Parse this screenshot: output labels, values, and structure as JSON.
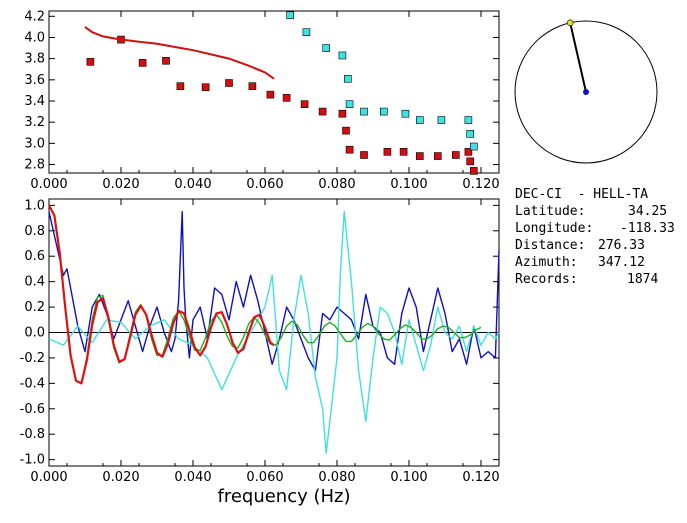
{
  "chart_data": [
    {
      "type": "scatter",
      "xlim": [
        0.0,
        0.125
      ],
      "ylim": [
        2.72,
        4.25
      ],
      "x_ticks": [
        "0.000",
        "0.020",
        "0.040",
        "0.060",
        "0.080",
        "0.100",
        "0.120"
      ],
      "x_tick_values": [
        0.0,
        0.02,
        0.04,
        0.06,
        0.08,
        0.1,
        0.12
      ],
      "y_ticks": [
        "2.8",
        "3.0",
        "3.2",
        "3.4",
        "3.6",
        "3.8",
        "4.0",
        "4.2"
      ],
      "y_tick_values": [
        2.8,
        3.0,
        3.2,
        3.4,
        3.6,
        3.8,
        4.0,
        4.2
      ],
      "series": [
        {
          "color": "#d01010",
          "marker": "square",
          "points": [
            [
              0.0115,
              3.77
            ],
            [
              0.02,
              3.98
            ],
            [
              0.026,
              3.76
            ],
            [
              0.0325,
              3.78
            ],
            [
              0.0365,
              3.54
            ],
            [
              0.0435,
              3.53
            ],
            [
              0.05,
              3.57
            ],
            [
              0.0565,
              3.54
            ],
            [
              0.0615,
              3.46
            ],
            [
              0.066,
              3.43
            ],
            [
              0.071,
              3.37
            ],
            [
              0.076,
              3.3
            ],
            [
              0.0815,
              3.28
            ],
            [
              0.0825,
              3.12
            ],
            [
              0.0835,
              2.94
            ],
            [
              0.0875,
              2.89
            ],
            [
              0.094,
              2.92
            ],
            [
              0.0985,
              2.92
            ],
            [
              0.103,
              2.88
            ],
            [
              0.108,
              2.88
            ],
            [
              0.113,
              2.89
            ],
            [
              0.1165,
              2.92
            ],
            [
              0.117,
              2.83
            ],
            [
              0.118,
              2.74
            ]
          ]
        },
        {
          "color": "#40e0e0",
          "marker": "square",
          "points": [
            [
              0.067,
              4.21
            ],
            [
              0.0715,
              4.05
            ],
            [
              0.077,
              3.9
            ],
            [
              0.0815,
              3.83
            ],
            [
              0.083,
              3.61
            ],
            [
              0.0835,
              3.37
            ],
            [
              0.0875,
              3.3
            ],
            [
              0.093,
              3.3
            ],
            [
              0.099,
              3.28
            ],
            [
              0.103,
              3.22
            ],
            [
              0.109,
              3.22
            ],
            [
              0.1165,
              3.22
            ],
            [
              0.117,
              3.09
            ],
            [
              0.118,
              2.97
            ]
          ]
        },
        {
          "color": "#d01010",
          "marker": "line",
          "points": [
            [
              0.01,
              4.1
            ],
            [
              0.012,
              4.05
            ],
            [
              0.015,
              4.01
            ],
            [
              0.02,
              3.98
            ],
            [
              0.025,
              3.96
            ],
            [
              0.03,
              3.94
            ],
            [
              0.035,
              3.91
            ],
            [
              0.04,
              3.88
            ],
            [
              0.045,
              3.84
            ],
            [
              0.05,
              3.8
            ],
            [
              0.055,
              3.74
            ],
            [
              0.06,
              3.67
            ],
            [
              0.0625,
              3.61
            ]
          ]
        }
      ]
    },
    {
      "type": "line",
      "xlabel": "frequency (Hz)",
      "xlim": [
        0.0,
        0.125
      ],
      "ylim": [
        -1.05,
        1.05
      ],
      "x_ticks": [
        "0.000",
        "0.020",
        "0.040",
        "0.060",
        "0.080",
        "0.100",
        "0.120"
      ],
      "x_tick_values": [
        0.0,
        0.02,
        0.04,
        0.06,
        0.08,
        0.1,
        0.12
      ],
      "y_ticks": [
        "1.0",
        "0.8",
        "0.6",
        "0.4",
        "0.2",
        "0.0",
        "-0.2",
        "-0.4",
        "-0.6",
        "-0.8",
        "-1.0"
      ],
      "y_tick_values": [
        1.0,
        0.8,
        0.6,
        0.4,
        0.2,
        0.0,
        -0.2,
        -0.4,
        -0.6,
        -0.8,
        -1.0
      ],
      "series": [
        {
          "color": "#1010c0",
          "width": 1.4,
          "x": [
            0.0,
            0.002,
            0.004,
            0.005,
            0.006,
            0.008,
            0.01,
            0.012,
            0.014,
            0.016,
            0.018,
            0.02,
            0.022,
            0.024,
            0.026,
            0.028,
            0.03,
            0.032,
            0.034,
            0.035,
            0.036,
            0.037,
            0.0375,
            0.038,
            0.039,
            0.04,
            0.042,
            0.044,
            0.046,
            0.048,
            0.05,
            0.052,
            0.054,
            0.056,
            0.058,
            0.06,
            0.062,
            0.064,
            0.066,
            0.068,
            0.07,
            0.072,
            0.074,
            0.076,
            0.078,
            0.08,
            0.082,
            0.084,
            0.086,
            0.088,
            0.09,
            0.092,
            0.094,
            0.096,
            0.098,
            0.1,
            0.102,
            0.104,
            0.106,
            0.108,
            0.11,
            0.112,
            0.114,
            0.116,
            0.118,
            0.12,
            0.122,
            0.124,
            0.125
          ],
          "y": [
            0.95,
            0.7,
            0.45,
            0.5,
            0.35,
            0.05,
            -0.15,
            0.2,
            0.3,
            0.15,
            -0.05,
            0.1,
            0.25,
            0.05,
            -0.15,
            0.05,
            0.2,
            0.0,
            -0.15,
            -0.05,
            0.25,
            0.95,
            0.35,
            0.1,
            -0.2,
            0.1,
            0.2,
            -0.05,
            0.35,
            0.3,
            0.1,
            0.4,
            0.2,
            0.45,
            0.25,
            0.0,
            -0.25,
            -0.05,
            0.2,
            0.1,
            -0.05,
            -0.2,
            -0.3,
            0.15,
            0.1,
            0.2,
            0.15,
            0.1,
            -0.05,
            0.3,
            0.05,
            0.0,
            -0.2,
            -0.25,
            0.15,
            0.35,
            0.2,
            -0.15,
            0.1,
            0.35,
            0.15,
            -0.15,
            -0.05,
            -0.25,
            0.05,
            -0.2,
            -0.15,
            -0.2,
            0.65
          ]
        },
        {
          "color": "#40e0e0",
          "width": 1.4,
          "x": [
            0.0,
            0.004,
            0.008,
            0.012,
            0.016,
            0.02,
            0.024,
            0.028,
            0.032,
            0.036,
            0.04,
            0.044,
            0.048,
            0.052,
            0.056,
            0.06,
            0.062,
            0.064,
            0.066,
            0.068,
            0.07,
            0.072,
            0.074,
            0.076,
            0.077,
            0.078,
            0.08,
            0.081,
            0.082,
            0.084,
            0.086,
            0.088,
            0.09,
            0.092,
            0.094,
            0.096,
            0.098,
            0.1,
            0.102,
            0.104,
            0.106,
            0.108,
            0.11,
            0.112,
            0.114,
            0.116,
            0.118,
            0.12,
            0.122,
            0.124,
            0.125
          ],
          "y": [
            -0.05,
            -0.1,
            0.05,
            -0.08,
            0.1,
            0.08,
            -0.05,
            0.05,
            0.1,
            -0.05,
            -0.1,
            -0.2,
            -0.45,
            -0.2,
            0.0,
            0.2,
            0.45,
            -0.3,
            -0.45,
            0.1,
            0.45,
            0.15,
            -0.35,
            -0.6,
            -0.95,
            -0.7,
            -0.2,
            0.5,
            0.95,
            0.4,
            -0.3,
            -0.7,
            -0.2,
            0.2,
            0.15,
            0.0,
            -0.25,
            0.1,
            -0.1,
            -0.3,
            -0.1,
            0.2,
            0.0,
            -0.05,
            0.05,
            -0.15,
            0.05,
            -0.1,
            0.0,
            -0.05,
            0.0
          ]
        },
        {
          "color": "#20b020",
          "width": 1.4,
          "x": [
            0.0,
            0.0015,
            0.003,
            0.0045,
            0.006,
            0.0075,
            0.009,
            0.0105,
            0.012,
            0.0135,
            0.015,
            0.0165,
            0.018,
            0.0195,
            0.021,
            0.0225,
            0.024,
            0.0255,
            0.027,
            0.0285,
            0.03,
            0.0315,
            0.033,
            0.0345,
            0.036,
            0.0375,
            0.039,
            0.0405,
            0.042,
            0.0435,
            0.045,
            0.0465,
            0.048,
            0.0495,
            0.051,
            0.0525,
            0.054,
            0.0555,
            0.057,
            0.0585,
            0.06,
            0.0615,
            0.063,
            0.0645,
            0.066,
            0.0675,
            0.069,
            0.0705,
            0.072,
            0.0735,
            0.075,
            0.0765,
            0.078,
            0.0795,
            0.081,
            0.0825,
            0.084,
            0.0855,
            0.087,
            0.0885,
            0.09,
            0.0915,
            0.093,
            0.0945,
            0.096,
            0.0975,
            0.099,
            0.1005,
            0.102,
            0.1035,
            0.105,
            0.1065,
            0.108,
            0.1095,
            0.111,
            0.1125,
            0.114,
            0.1155,
            0.117,
            0.1185,
            0.12
          ],
          "y": [
            1.0,
            0.92,
            0.62,
            0.2,
            -0.18,
            -0.38,
            -0.4,
            -0.2,
            0.1,
            0.28,
            0.29,
            0.1,
            -0.12,
            -0.24,
            -0.21,
            -0.02,
            0.16,
            0.22,
            0.13,
            -0.05,
            -0.18,
            -0.18,
            -0.05,
            0.11,
            0.17,
            0.1,
            -0.03,
            -0.14,
            -0.14,
            -0.04,
            0.09,
            0.14,
            0.08,
            -0.03,
            -0.11,
            -0.12,
            -0.04,
            0.07,
            0.12,
            0.07,
            -0.02,
            -0.09,
            -0.1,
            -0.04,
            0.05,
            0.09,
            0.06,
            -0.02,
            -0.08,
            -0.08,
            -0.02,
            0.05,
            0.08,
            0.05,
            -0.01,
            -0.07,
            -0.07,
            -0.02,
            0.04,
            0.07,
            0.05,
            -0.01,
            -0.05,
            -0.06,
            -0.02,
            0.03,
            0.06,
            0.04,
            0.0,
            -0.05,
            -0.05,
            -0.02,
            0.03,
            0.05,
            0.04,
            0.0,
            -0.04,
            -0.04,
            -0.02,
            0.02,
            0.04
          ]
        },
        {
          "color": "#e01010",
          "width": 2.2,
          "x": [
            0.0,
            0.0015,
            0.003,
            0.0045,
            0.006,
            0.0075,
            0.009,
            0.0105,
            0.012,
            0.0135,
            0.015,
            0.0165,
            0.018,
            0.0195,
            0.021,
            0.0225,
            0.024,
            0.0255,
            0.027,
            0.0285,
            0.03,
            0.0315,
            0.033,
            0.0345,
            0.036,
            0.0375,
            0.039,
            0.0405,
            0.042,
            0.0435,
            0.045,
            0.0465,
            0.048,
            0.0495,
            0.051,
            0.0525,
            0.054,
            0.0555,
            0.057,
            0.0585,
            0.06,
            0.0615,
            0.0625
          ],
          "y": [
            1.0,
            0.92,
            0.62,
            0.2,
            -0.18,
            -0.38,
            -0.4,
            -0.22,
            0.06,
            0.24,
            0.27,
            0.12,
            -0.1,
            -0.23,
            -0.21,
            -0.04,
            0.14,
            0.21,
            0.14,
            -0.02,
            -0.16,
            -0.19,
            -0.09,
            0.07,
            0.17,
            0.15,
            0.02,
            -0.12,
            -0.18,
            -0.11,
            0.04,
            0.15,
            0.16,
            0.06,
            -0.08,
            -0.16,
            -0.13,
            0.0,
            0.12,
            0.14,
            0.04,
            -0.08,
            -0.1
          ]
        }
      ]
    }
  ],
  "compass": {
    "azimuth_deg": 347.12,
    "needle_color": "#000000",
    "tip_color": "#e0e020",
    "center_color": "#1010c0"
  },
  "info": {
    "station": "DEC-CI  - HELL-TA",
    "lat_label": "Latitude:",
    "lat_value": "34.25",
    "lon_label": "Longitude:",
    "lon_value": "-118.33",
    "dist_label": "Distance:",
    "dist_value": "276.33",
    "az_label": "Azimuth:",
    "az_value": "347.12",
    "rec_label": "Records:",
    "rec_value": "1874"
  }
}
